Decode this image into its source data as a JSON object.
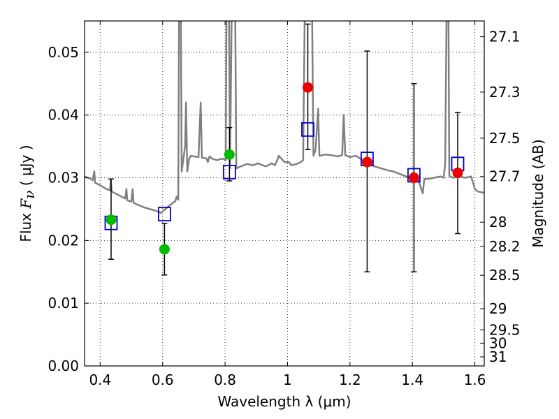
{
  "chart_data": {
    "type": "scatter",
    "xlabel": "Wavelength  λ (μm)",
    "ylabel_left_prefix": "Flux ",
    "ylabel_left_symbol": "F",
    "ylabel_left_sub": "ν",
    "ylabel_left_unit": " ( μJy )",
    "ylabel_right": "Magnitude (AB)",
    "xlim": [
      0.35,
      1.63
    ],
    "ylim": [
      0.0,
      0.055
    ],
    "x_ticks": [
      0.4,
      0.6,
      0.8,
      1.0,
      1.2,
      1.4,
      1.6
    ],
    "x_tick_labels": [
      "0.4",
      "0.6",
      "0.8",
      "1",
      "1.2",
      "1.4",
      "1.6"
    ],
    "y_ticks": [
      0.0,
      0.01,
      0.02,
      0.03,
      0.04,
      0.05
    ],
    "y_tick_labels": [
      "0.00",
      "0.01",
      "0.02",
      "0.03",
      "0.04",
      "0.05"
    ],
    "right_ticks": [
      27.1,
      27.3,
      27.5,
      27.7,
      28,
      28.2,
      28.5,
      29,
      29.5,
      30,
      31
    ],
    "right_tick_labels": [
      "27.1",
      "27.3",
      "27.5",
      "27.7",
      "28",
      "28.2",
      "28.5",
      "29",
      "29.5",
      "30",
      "31"
    ],
    "grid": true,
    "colors": {
      "model": "#808080",
      "observed_optical": "#00bb00",
      "observed_nir": "#ee0000",
      "model_photometry": "#0000cc",
      "errorbar": "#000000"
    },
    "observed_optical": [
      {
        "x": 0.435,
        "y": 0.0233,
        "ylo": 0.017,
        "yhi": 0.0298
      },
      {
        "x": 0.606,
        "y": 0.0186,
        "ylo": 0.0145,
        "yhi": 0.0227
      },
      {
        "x": 0.814,
        "y": 0.0337,
        "ylo": 0.0295,
        "yhi": 0.038
      }
    ],
    "observed_nir": [
      {
        "x": 1.065,
        "y": 0.0444,
        "ylo": 0.0345,
        "yhi": 0.0545
      },
      {
        "x": 1.255,
        "y": 0.0325,
        "ylo": 0.015,
        "yhi": 0.0502
      },
      {
        "x": 1.405,
        "y": 0.03,
        "ylo": 0.015,
        "yhi": 0.045
      },
      {
        "x": 1.545,
        "y": 0.0308,
        "ylo": 0.0211,
        "yhi": 0.0404
      }
    ],
    "model_photometry": [
      {
        "x": 0.435,
        "y": 0.0228
      },
      {
        "x": 0.606,
        "y": 0.0242
      },
      {
        "x": 0.814,
        "y": 0.0309
      },
      {
        "x": 1.065,
        "y": 0.0377
      },
      {
        "x": 1.255,
        "y": 0.033
      },
      {
        "x": 1.405,
        "y": 0.0304
      },
      {
        "x": 1.545,
        "y": 0.0322
      }
    ],
    "model_spectrum": [
      [
        0.35,
        0.0302
      ],
      [
        0.36,
        0.03
      ],
      [
        0.37,
        0.0298
      ],
      [
        0.376,
        0.0296
      ],
      [
        0.381,
        0.031
      ],
      [
        0.384,
        0.0292
      ],
      [
        0.4,
        0.0288
      ],
      [
        0.42,
        0.0282
      ],
      [
        0.432,
        0.028
      ],
      [
        0.434,
        0.0296
      ],
      [
        0.437,
        0.0278
      ],
      [
        0.46,
        0.0272
      ],
      [
        0.48,
        0.0267
      ],
      [
        0.484,
        0.0282
      ],
      [
        0.487,
        0.0264
      ],
      [
        0.5,
        0.0262
      ],
      [
        0.504,
        0.0282
      ],
      [
        0.507,
        0.026
      ],
      [
        0.52,
        0.0257
      ],
      [
        0.54,
        0.0253
      ],
      [
        0.56,
        0.025
      ],
      [
        0.58,
        0.0247
      ],
      [
        0.595,
        0.0244
      ],
      [
        0.62,
        0.0255
      ],
      [
        0.638,
        0.0262
      ],
      [
        0.64,
        0.0262
      ],
      [
        0.645,
        0.027
      ],
      [
        0.65,
        0.0265
      ],
      [
        0.653,
        0.06
      ],
      [
        0.658,
        0.06
      ],
      [
        0.661,
        0.031
      ],
      [
        0.672,
        0.035
      ],
      [
        0.675,
        0.042
      ],
      [
        0.679,
        0.031
      ],
      [
        0.685,
        0.033
      ],
      [
        0.69,
        0.0335
      ],
      [
        0.7,
        0.0334
      ],
      [
        0.715,
        0.0333
      ],
      [
        0.722,
        0.042
      ],
      [
        0.726,
        0.0332
      ],
      [
        0.74,
        0.0331
      ],
      [
        0.745,
        0.0325
      ],
      [
        0.75,
        0.0334
      ],
      [
        0.76,
        0.033
      ],
      [
        0.775,
        0.0328
      ],
      [
        0.785,
        0.033
      ],
      [
        0.795,
        0.033
      ],
      [
        0.802,
        0.0328
      ],
      [
        0.805,
        0.06
      ],
      [
        0.812,
        0.06
      ],
      [
        0.816,
        0.0315
      ],
      [
        0.822,
        0.06
      ],
      [
        0.832,
        0.06
      ],
      [
        0.836,
        0.0315
      ],
      [
        0.85,
        0.0318
      ],
      [
        0.87,
        0.0322
      ],
      [
        0.89,
        0.032
      ],
      [
        0.905,
        0.0323
      ],
      [
        0.93,
        0.0318
      ],
      [
        0.95,
        0.0323
      ],
      [
        0.96,
        0.032
      ],
      [
        0.967,
        0.0328
      ],
      [
        0.972,
        0.0335
      ],
      [
        0.99,
        0.0325
      ],
      [
        1.005,
        0.0325
      ],
      [
        1.012,
        0.032
      ],
      [
        1.03,
        0.0322
      ],
      [
        1.042,
        0.0325
      ],
      [
        1.05,
        0.0328
      ],
      [
        1.056,
        0.06
      ],
      [
        1.078,
        0.06
      ],
      [
        1.083,
        0.0335
      ],
      [
        1.09,
        0.0345
      ],
      [
        1.098,
        0.041
      ],
      [
        1.102,
        0.0335
      ],
      [
        1.12,
        0.0337
      ],
      [
        1.14,
        0.0336
      ],
      [
        1.16,
        0.0334
      ],
      [
        1.175,
        0.0336
      ],
      [
        1.18,
        0.04
      ],
      [
        1.185,
        0.0336
      ],
      [
        1.2,
        0.0333
      ],
      [
        1.22,
        0.0335
      ],
      [
        1.24,
        0.0328
      ],
      [
        1.26,
        0.0322
      ],
      [
        1.28,
        0.0318
      ],
      [
        1.3,
        0.0315
      ],
      [
        1.32,
        0.0312
      ],
      [
        1.34,
        0.031
      ],
      [
        1.36,
        0.0306
      ],
      [
        1.38,
        0.0302
      ],
      [
        1.4,
        0.03
      ],
      [
        1.42,
        0.0295
      ],
      [
        1.433,
        0.0275
      ],
      [
        1.438,
        0.0298
      ],
      [
        1.45,
        0.0298
      ],
      [
        1.47,
        0.03
      ],
      [
        1.49,
        0.0302
      ],
      [
        1.5,
        0.03
      ],
      [
        1.505,
        0.0322
      ],
      [
        1.51,
        0.06
      ],
      [
        1.515,
        0.06
      ],
      [
        1.518,
        0.0303
      ],
      [
        1.53,
        0.03
      ],
      [
        1.55,
        0.0302
      ],
      [
        1.57,
        0.03
      ],
      [
        1.588,
        0.0302
      ],
      [
        1.6,
        0.0282
      ],
      [
        1.61,
        0.0278
      ],
      [
        1.63,
        0.0276
      ]
    ]
  }
}
